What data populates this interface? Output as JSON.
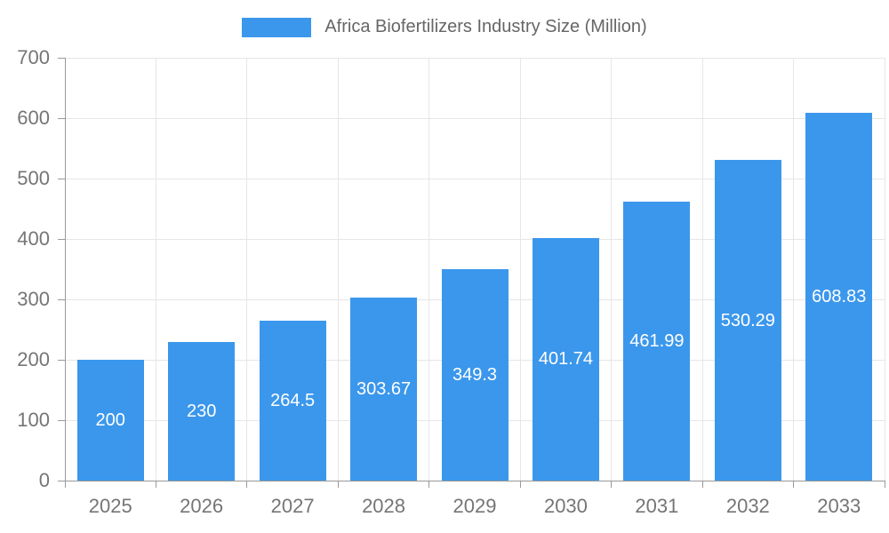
{
  "legend": {
    "label": "Africa Biofertilizers Industry Size (Million)"
  },
  "chart_data": {
    "type": "bar",
    "title": "Africa Biofertilizers Industry Size (Million)",
    "categories": [
      "2025",
      "2026",
      "2027",
      "2028",
      "2029",
      "2030",
      "2031",
      "2032",
      "2033"
    ],
    "values": [
      200,
      230,
      264.5,
      303.67,
      349.3,
      401.74,
      461.99,
      530.29,
      608.83
    ],
    "value_labels": [
      "200",
      "230",
      "264.5",
      "303.67",
      "349.3",
      "401.74",
      "461.99",
      "530.29",
      "608.83"
    ],
    "xlabel": "",
    "ylabel": "",
    "ylim": [
      0,
      700
    ],
    "yticks": [
      0,
      100,
      200,
      300,
      400,
      500,
      600,
      700
    ],
    "grid": true,
    "legend_position": "top",
    "colors": {
      "bar": "#3B97EC",
      "grid": "#E6E6E6",
      "axis": "#999999",
      "axis_label": "#757575",
      "legend_text": "#666666",
      "bar_label": "#FFFFFF"
    }
  }
}
